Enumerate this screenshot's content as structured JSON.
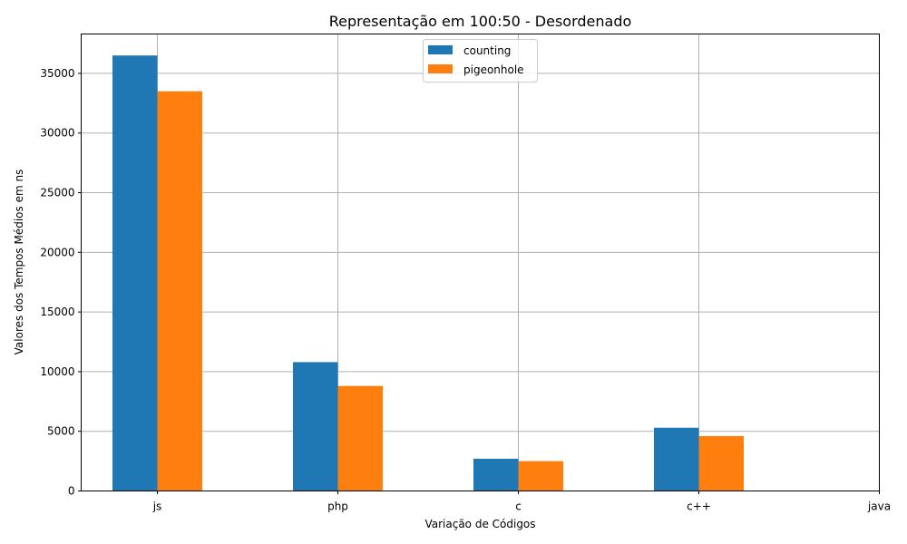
{
  "chart_data": {
    "type": "bar",
    "title": "Representação em 100:50 - Desordenado",
    "xlabel": "Variação de Códigos",
    "ylabel": "Valores dos Tempos Médios em ns",
    "categories": [
      "js",
      "php",
      "c",
      "c++",
      "java"
    ],
    "series": [
      {
        "name": "counting",
        "color": "#1f77b4",
        "values": [
          36500,
          10800,
          2700,
          5300,
          null
        ]
      },
      {
        "name": "pigeonhole",
        "color": "#ff7f0e",
        "values": [
          33500,
          8800,
          2500,
          4600,
          null
        ]
      }
    ],
    "yticks": [
      0,
      5000,
      10000,
      15000,
      20000,
      25000,
      30000,
      35000
    ],
    "ylim": [
      0,
      38300
    ],
    "grid": true,
    "legend_position": "top-center"
  }
}
